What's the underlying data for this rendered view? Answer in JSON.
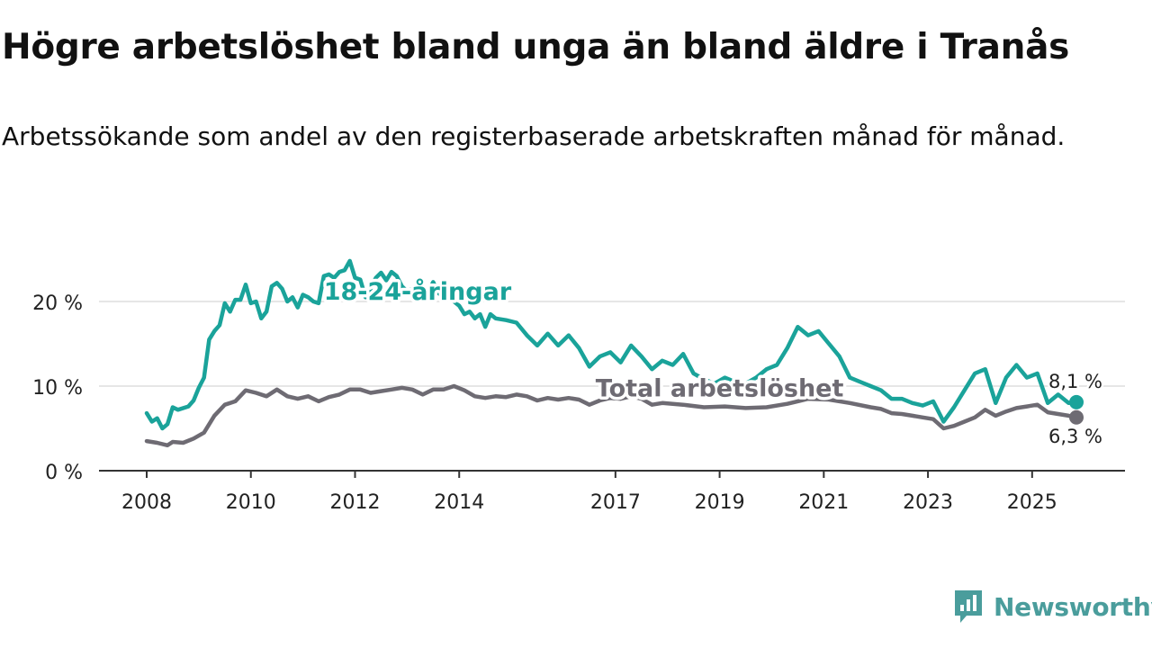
{
  "title": "Högre arbetslöshet bland unga än bland äldre i Tranås",
  "subtitle": "Arbetssökande som andel av den registerbaserade arbetskraften månad för månad.",
  "brand": "Newsworthy",
  "colors": {
    "youth": "#1aa39a",
    "total": "#6e6b73",
    "grid": "#dddddd",
    "axis": "#333333"
  },
  "chart_data": {
    "type": "line",
    "title": "Högre arbetslöshet bland unga än bland äldre i Tranås",
    "xlabel": "",
    "ylabel": "",
    "xlim": [
      2008,
      2026.3
    ],
    "ylim": [
      0,
      25
    ],
    "yticks": [
      {
        "value": 0,
        "label": "0 %"
      },
      {
        "value": 10,
        "label": "10 %"
      },
      {
        "value": 20,
        "label": "20 %"
      }
    ],
    "xticks": [
      {
        "value": 2008,
        "label": "2008"
      },
      {
        "value": 2010,
        "label": "2010"
      },
      {
        "value": 2012,
        "label": "2012"
      },
      {
        "value": 2014,
        "label": "2014"
      },
      {
        "value": 2017,
        "label": "2017"
      },
      {
        "value": 2019,
        "label": "2019"
      },
      {
        "value": 2021,
        "label": "2021"
      },
      {
        "value": 2023,
        "label": "2023"
      },
      {
        "value": 2025,
        "label": "2025"
      }
    ],
    "series": [
      {
        "name": "18-24-åringar",
        "color": "#1aa39a",
        "last_label": "8,1 %",
        "points": [
          [
            2008.0,
            6.8
          ],
          [
            2008.1,
            5.8
          ],
          [
            2008.2,
            6.2
          ],
          [
            2008.3,
            5.0
          ],
          [
            2008.4,
            5.5
          ],
          [
            2008.5,
            7.5
          ],
          [
            2008.6,
            7.2
          ],
          [
            2008.8,
            7.6
          ],
          [
            2008.9,
            8.3
          ],
          [
            2009.0,
            9.8
          ],
          [
            2009.1,
            11.0
          ],
          [
            2009.2,
            15.5
          ],
          [
            2009.3,
            16.5
          ],
          [
            2009.4,
            17.2
          ],
          [
            2009.5,
            19.8
          ],
          [
            2009.6,
            18.8
          ],
          [
            2009.7,
            20.2
          ],
          [
            2009.8,
            20.2
          ],
          [
            2009.9,
            22.0
          ],
          [
            2010.0,
            19.8
          ],
          [
            2010.1,
            20.0
          ],
          [
            2010.2,
            18.0
          ],
          [
            2010.3,
            18.8
          ],
          [
            2010.4,
            21.8
          ],
          [
            2010.5,
            22.2
          ],
          [
            2010.6,
            21.5
          ],
          [
            2010.7,
            20.0
          ],
          [
            2010.8,
            20.5
          ],
          [
            2010.9,
            19.3
          ],
          [
            2011.0,
            20.8
          ],
          [
            2011.1,
            20.5
          ],
          [
            2011.2,
            20.0
          ],
          [
            2011.3,
            19.8
          ],
          [
            2011.4,
            23.0
          ],
          [
            2011.5,
            23.2
          ],
          [
            2011.6,
            22.8
          ],
          [
            2011.7,
            23.5
          ],
          [
            2011.8,
            23.7
          ],
          [
            2011.9,
            24.8
          ],
          [
            2012.0,
            22.8
          ],
          [
            2012.1,
            22.6
          ],
          [
            2012.2,
            20.5
          ],
          [
            2012.3,
            21.5
          ],
          [
            2012.4,
            22.8
          ],
          [
            2012.5,
            23.4
          ],
          [
            2012.6,
            22.5
          ],
          [
            2012.7,
            23.5
          ],
          [
            2012.8,
            23.0
          ],
          [
            2012.9,
            21.8
          ],
          [
            2013.0,
            21.2
          ],
          [
            2013.1,
            21.5
          ],
          [
            2013.2,
            21.8
          ],
          [
            2013.3,
            21.5
          ],
          [
            2013.4,
            21.0
          ],
          [
            2013.5,
            22.3
          ],
          [
            2013.6,
            21.0
          ],
          [
            2013.7,
            20.5
          ],
          [
            2013.8,
            20.5
          ],
          [
            2013.9,
            20.0
          ],
          [
            2014.0,
            19.5
          ],
          [
            2014.1,
            18.5
          ],
          [
            2014.2,
            18.8
          ],
          [
            2014.3,
            18.0
          ],
          [
            2014.4,
            18.5
          ],
          [
            2014.5,
            17.0
          ],
          [
            2014.6,
            18.5
          ],
          [
            2014.7,
            18.0
          ],
          [
            2014.9,
            17.8
          ],
          [
            2015.1,
            17.5
          ],
          [
            2015.3,
            16.0
          ],
          [
            2015.5,
            14.8
          ],
          [
            2015.7,
            16.2
          ],
          [
            2015.9,
            14.8
          ],
          [
            2016.1,
            16.0
          ],
          [
            2016.3,
            14.5
          ],
          [
            2016.5,
            12.3
          ],
          [
            2016.7,
            13.5
          ],
          [
            2016.9,
            14.0
          ],
          [
            2017.1,
            12.8
          ],
          [
            2017.3,
            14.8
          ],
          [
            2017.5,
            13.5
          ],
          [
            2017.7,
            12.0
          ],
          [
            2017.9,
            13.0
          ],
          [
            2018.1,
            12.5
          ],
          [
            2018.3,
            13.8
          ],
          [
            2018.5,
            11.5
          ],
          [
            2018.7,
            10.8
          ],
          [
            2018.9,
            10.3
          ],
          [
            2019.1,
            11.0
          ],
          [
            2019.3,
            10.5
          ],
          [
            2019.5,
            10.3
          ],
          [
            2019.7,
            11.0
          ],
          [
            2019.9,
            12.0
          ],
          [
            2020.1,
            12.5
          ],
          [
            2020.3,
            14.5
          ],
          [
            2020.5,
            17.0
          ],
          [
            2020.7,
            16.0
          ],
          [
            2020.9,
            16.5
          ],
          [
            2021.1,
            15.0
          ],
          [
            2021.3,
            13.5
          ],
          [
            2021.5,
            11.0
          ],
          [
            2021.7,
            10.5
          ],
          [
            2021.9,
            10.0
          ],
          [
            2022.1,
            9.5
          ],
          [
            2022.3,
            8.5
          ],
          [
            2022.5,
            8.5
          ],
          [
            2022.7,
            8.0
          ],
          [
            2022.9,
            7.7
          ],
          [
            2023.1,
            8.2
          ],
          [
            2023.3,
            5.8
          ],
          [
            2023.5,
            7.5
          ],
          [
            2023.7,
            9.5
          ],
          [
            2023.9,
            11.5
          ],
          [
            2024.1,
            12.0
          ],
          [
            2024.3,
            8.0
          ],
          [
            2024.5,
            11.0
          ],
          [
            2024.7,
            12.5
          ],
          [
            2024.9,
            11.0
          ],
          [
            2025.1,
            11.5
          ],
          [
            2025.3,
            8.0
          ],
          [
            2025.5,
            9.0
          ],
          [
            2025.7,
            8.0
          ],
          [
            2025.85,
            8.1
          ]
        ]
      },
      {
        "name": "Total arbetslöshet",
        "color": "#6e6b73",
        "last_label": "6,3 %",
        "points": [
          [
            2008.0,
            3.5
          ],
          [
            2008.2,
            3.3
          ],
          [
            2008.4,
            3.0
          ],
          [
            2008.5,
            3.4
          ],
          [
            2008.7,
            3.3
          ],
          [
            2008.9,
            3.8
          ],
          [
            2009.1,
            4.5
          ],
          [
            2009.3,
            6.5
          ],
          [
            2009.5,
            7.8
          ],
          [
            2009.7,
            8.2
          ],
          [
            2009.9,
            9.5
          ],
          [
            2010.1,
            9.2
          ],
          [
            2010.3,
            8.8
          ],
          [
            2010.5,
            9.6
          ],
          [
            2010.7,
            8.8
          ],
          [
            2010.9,
            8.5
          ],
          [
            2011.1,
            8.8
          ],
          [
            2011.3,
            8.2
          ],
          [
            2011.5,
            8.7
          ],
          [
            2011.7,
            9.0
          ],
          [
            2011.9,
            9.6
          ],
          [
            2012.1,
            9.6
          ],
          [
            2012.3,
            9.2
          ],
          [
            2012.5,
            9.4
          ],
          [
            2012.7,
            9.6
          ],
          [
            2012.9,
            9.8
          ],
          [
            2013.1,
            9.6
          ],
          [
            2013.3,
            9.0
          ],
          [
            2013.5,
            9.6
          ],
          [
            2013.7,
            9.6
          ],
          [
            2013.9,
            10.0
          ],
          [
            2014.1,
            9.5
          ],
          [
            2014.3,
            8.8
          ],
          [
            2014.5,
            8.6
          ],
          [
            2014.7,
            8.8
          ],
          [
            2014.9,
            8.7
          ],
          [
            2015.1,
            9.0
          ],
          [
            2015.3,
            8.8
          ],
          [
            2015.5,
            8.3
          ],
          [
            2015.7,
            8.6
          ],
          [
            2015.9,
            8.4
          ],
          [
            2016.1,
            8.6
          ],
          [
            2016.3,
            8.4
          ],
          [
            2016.5,
            7.8
          ],
          [
            2016.7,
            8.3
          ],
          [
            2016.9,
            8.6
          ],
          [
            2017.1,
            8.5
          ],
          [
            2017.3,
            8.8
          ],
          [
            2017.5,
            8.5
          ],
          [
            2017.7,
            7.8
          ],
          [
            2017.9,
            8.0
          ],
          [
            2018.3,
            7.8
          ],
          [
            2018.7,
            7.5
          ],
          [
            2019.1,
            7.6
          ],
          [
            2019.5,
            7.4
          ],
          [
            2019.9,
            7.5
          ],
          [
            2020.3,
            7.9
          ],
          [
            2020.7,
            8.5
          ],
          [
            2021.1,
            8.4
          ],
          [
            2021.5,
            8.0
          ],
          [
            2021.9,
            7.5
          ],
          [
            2022.1,
            7.3
          ],
          [
            2022.3,
            6.8
          ],
          [
            2022.5,
            6.7
          ],
          [
            2022.7,
            6.5
          ],
          [
            2022.9,
            6.3
          ],
          [
            2023.1,
            6.1
          ],
          [
            2023.3,
            5.0
          ],
          [
            2023.5,
            5.3
          ],
          [
            2023.7,
            5.8
          ],
          [
            2023.9,
            6.3
          ],
          [
            2024.1,
            7.2
          ],
          [
            2024.3,
            6.5
          ],
          [
            2024.5,
            7.0
          ],
          [
            2024.7,
            7.4
          ],
          [
            2024.9,
            7.6
          ],
          [
            2025.1,
            7.8
          ],
          [
            2025.3,
            6.9
          ],
          [
            2025.5,
            6.7
          ],
          [
            2025.7,
            6.5
          ],
          [
            2025.85,
            6.3
          ]
        ]
      }
    ],
    "annotations": [
      {
        "text": "18-24-åringar",
        "series": "18-24-åringar",
        "x": 2013.2,
        "y": 20.2
      },
      {
        "text": "Total arbetslöshet",
        "series": "Total arbetslöshet",
        "x": 2019.0,
        "y": 8.8
      }
    ]
  }
}
